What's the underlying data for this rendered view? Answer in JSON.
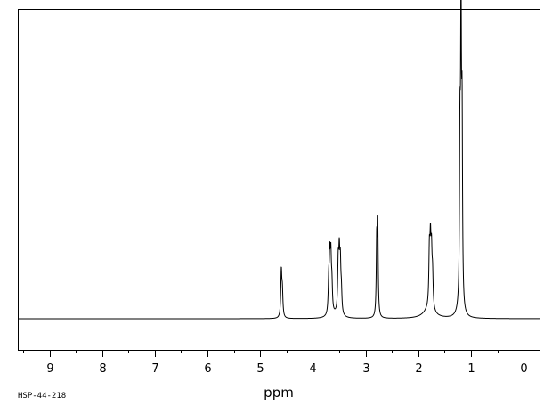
{
  "chart_data": {
    "type": "line",
    "xlabel": "ppm",
    "ylabel": "",
    "xlim": [
      9.6,
      -0.3
    ],
    "x_reversed": true,
    "ylim": [
      -0.12,
      1.12
    ],
    "x_ticks": [
      9,
      8,
      7,
      6,
      5,
      4,
      3,
      2,
      1,
      0
    ],
    "x_tick_labels": [
      "9",
      "8",
      "7",
      "6",
      "5",
      "4",
      "3",
      "2",
      "1",
      "0"
    ],
    "grid": false,
    "spectrum_code": "HSP-44-218",
    "series": [
      {
        "peaks": [
          {
            "x": 4.6,
            "y": 0.16,
            "w": 0.012
          },
          {
            "x": 4.58,
            "y": 0.085,
            "w": 0.012
          },
          {
            "x": 3.7,
            "y": 0.11,
            "w": 0.012
          },
          {
            "x": 3.68,
            "y": 0.18,
            "w": 0.012
          },
          {
            "x": 3.66,
            "y": 0.18,
            "w": 0.012
          },
          {
            "x": 3.64,
            "y": 0.09,
            "w": 0.012
          },
          {
            "x": 3.52,
            "y": 0.17,
            "w": 0.012
          },
          {
            "x": 3.5,
            "y": 0.185,
            "w": 0.012
          },
          {
            "x": 3.48,
            "y": 0.16,
            "w": 0.012
          },
          {
            "x": 3.46,
            "y": 0.07,
            "w": 0.012
          },
          {
            "x": 2.79,
            "y": 0.26,
            "w": 0.01
          },
          {
            "x": 2.77,
            "y": 0.315,
            "w": 0.01
          },
          {
            "x": 1.79,
            "y": 0.19,
            "w": 0.012
          },
          {
            "x": 1.77,
            "y": 0.205,
            "w": 0.012
          },
          {
            "x": 1.75,
            "y": 0.175,
            "w": 0.012
          },
          {
            "x": 1.73,
            "y": 0.11,
            "w": 0.012
          },
          {
            "x": 1.21,
            "y": 0.55,
            "w": 0.01
          },
          {
            "x": 1.19,
            "y": 1.0,
            "w": 0.01
          },
          {
            "x": 1.17,
            "y": 0.62,
            "w": 0.01
          }
        ],
        "broad": [
          {
            "x": 1.8,
            "y": 0.03,
            "w": 0.12
          },
          {
            "x": 3.58,
            "y": 0.01,
            "w": 0.1
          },
          {
            "x": 1.22,
            "y": 0.015,
            "w": 0.06
          }
        ]
      }
    ]
  }
}
